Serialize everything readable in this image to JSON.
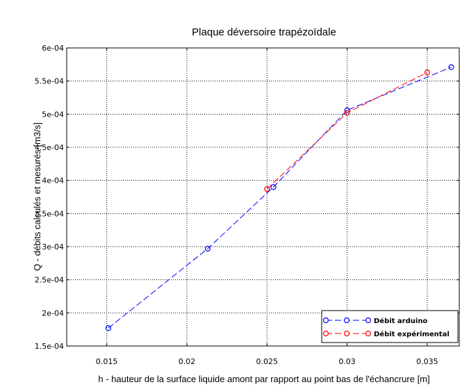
{
  "chart_data": {
    "type": "line",
    "title": "Plaque déversoire trapézoïdale",
    "xlabel": "h - hauteur de la surface liquide amont par rapport au point bas de l'échancrure [m]",
    "ylabel": "Q - débits calculés et mesurés [m3/s]",
    "xlim": [
      0.0125,
      0.037
    ],
    "ylim": [
      0.00015,
      0.0006
    ],
    "xticks": [
      0.015,
      0.02,
      0.025,
      0.03,
      0.035
    ],
    "xtick_labels": [
      "0.015",
      "0.02",
      "0.025",
      "0.03",
      "0.035"
    ],
    "yticks": [
      0.00015,
      0.0002,
      0.00025,
      0.0003,
      0.00035,
      0.0004,
      0.00045,
      0.0005,
      0.00055,
      0.0006
    ],
    "ytick_labels": [
      "1.5e-04",
      "2e-04",
      "2.5e-04",
      "3e-04",
      "3.5e-04",
      "4e-04",
      "4.5e-04",
      "5e-04",
      "5.5e-04",
      "6e-04"
    ],
    "grid": true,
    "legend_position": "bottom-right",
    "series": [
      {
        "name": "Débit arduino",
        "color": "#0000ff",
        "marker": "circle-open",
        "x": [
          0.0151,
          0.0213,
          0.0254,
          0.03,
          0.0365
        ],
        "y": [
          0.000177,
          0.000297,
          0.00039,
          0.000506,
          0.000571
        ]
      },
      {
        "name": "Débit expérimental",
        "color": "#ff0000",
        "marker": "circle-open",
        "x": [
          0.025,
          0.03,
          0.035
        ],
        "y": [
          0.000387,
          0.000502,
          0.000563
        ]
      }
    ]
  }
}
